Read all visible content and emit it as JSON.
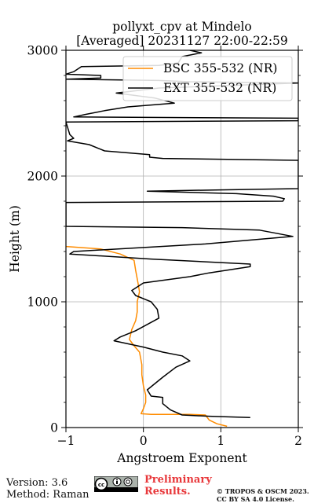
{
  "chart_data": {
    "type": "line",
    "title": "pollyxt_cpv at Mindelo",
    "subtitle": "[Averaged] 20231127 22:00-22:59",
    "xlabel": "Angstroem Exponent",
    "ylabel": "Height (m)",
    "xlim": [
      -1,
      2
    ],
    "ylim": [
      0,
      3000
    ],
    "xticks": [
      "−1",
      "0",
      "1",
      "2"
    ],
    "yticks": [
      "0",
      "1000",
      "2000",
      "3000"
    ],
    "grid": true,
    "legend_position": "top-right",
    "series": [
      {
        "name": "BSC 355-532 (NR)",
        "color": "#ff8c00",
        "points": [
          [
            1.08,
            10
          ],
          [
            0.95,
            30
          ],
          [
            0.85,
            60
          ],
          [
            0.8,
            100
          ],
          [
            0.6,
            105
          ],
          [
            0.1,
            105
          ],
          [
            -0.03,
            110
          ],
          [
            0.0,
            150
          ],
          [
            0.03,
            200
          ],
          [
            0.03,
            260
          ],
          [
            0.0,
            330
          ],
          [
            -0.02,
            420
          ],
          [
            -0.02,
            500
          ],
          [
            -0.05,
            600
          ],
          [
            -0.12,
            650
          ],
          [
            -0.18,
            700
          ],
          [
            -0.15,
            780
          ],
          [
            -0.1,
            850
          ],
          [
            -0.08,
            920
          ],
          [
            -0.08,
            1000
          ],
          [
            -0.05,
            1080
          ],
          [
            -0.07,
            1150
          ],
          [
            -0.1,
            1250
          ],
          [
            -0.12,
            1330
          ],
          [
            -0.3,
            1380
          ],
          [
            -0.55,
            1420
          ],
          [
            -1.0,
            1440
          ]
        ]
      },
      {
        "name": "EXT 355-532 (NR)",
        "color": "#000000",
        "points": [
          [
            1.38,
            80
          ],
          [
            0.85,
            90
          ],
          [
            0.5,
            100
          ],
          [
            0.35,
            140
          ],
          [
            0.25,
            190
          ],
          [
            0.25,
            240
          ],
          [
            0.1,
            250
          ],
          [
            0.05,
            300
          ],
          [
            0.25,
            400
          ],
          [
            0.42,
            480
          ],
          [
            0.6,
            530
          ],
          [
            0.5,
            570
          ],
          [
            0.25,
            600
          ],
          [
            0.0,
            640
          ],
          [
            -0.38,
            690
          ],
          [
            -0.3,
            720
          ],
          [
            -0.1,
            770
          ],
          [
            0.05,
            820
          ],
          [
            0.2,
            870
          ],
          [
            0.18,
            940
          ],
          [
            0.1,
            1000
          ],
          [
            -0.1,
            1050
          ],
          [
            -0.15,
            1090
          ],
          [
            0.0,
            1150
          ],
          [
            0.6,
            1200
          ],
          [
            0.85,
            1230
          ],
          [
            1.38,
            1280
          ],
          [
            1.38,
            1300
          ],
          [
            0.1,
            1340
          ],
          [
            -0.95,
            1380
          ],
          [
            -0.9,
            1400
          ],
          [
            0.8,
            1460
          ],
          [
            1.93,
            1520
          ],
          [
            1.5,
            1570
          ],
          [
            0.5,
            1590
          ],
          [
            -1.0,
            1600
          ],
          [
            -1.0,
            1790
          ],
          [
            1.8,
            1800
          ],
          [
            1.82,
            1820
          ],
          [
            1.68,
            1840
          ],
          [
            1.2,
            1860
          ],
          [
            0.05,
            1880
          ],
          [
            1.0,
            1890
          ],
          [
            2.0,
            1900
          ],
          [
            2.0,
            2125
          ],
          [
            0.25,
            2140
          ],
          [
            0.08,
            2150
          ],
          [
            0.08,
            2170
          ],
          [
            -0.5,
            2200
          ],
          [
            -0.58,
            2220
          ],
          [
            -0.7,
            2250
          ],
          [
            -0.98,
            2280
          ],
          [
            -0.9,
            2300
          ],
          [
            -0.95,
            2330
          ],
          [
            -1.0,
            2430
          ],
          [
            2.0,
            2440
          ],
          [
            2.0,
            2460
          ],
          [
            -0.9,
            2470
          ],
          [
            -0.75,
            2490
          ],
          [
            -0.5,
            2520
          ],
          [
            -0.2,
            2550
          ],
          [
            0.4,
            2580
          ],
          [
            0.15,
            2620
          ],
          [
            -0.35,
            2660
          ],
          [
            0.2,
            2700
          ],
          [
            2.0,
            2740
          ],
          [
            0.6,
            2750
          ],
          [
            0.2,
            2760
          ],
          [
            -1.0,
            2770
          ],
          [
            -0.55,
            2780
          ],
          [
            -0.55,
            2800
          ],
          [
            -1.0,
            2810
          ],
          [
            -0.9,
            2830
          ],
          [
            -0.8,
            2870
          ],
          [
            0.2,
            2880
          ],
          [
            0.45,
            2900
          ],
          [
            0.5,
            2950
          ],
          [
            0.75,
            2980
          ],
          [
            0.6,
            3000
          ]
        ]
      }
    ]
  },
  "footer": {
    "version": "Version: 3.6",
    "method": "Method: Raman",
    "preliminary_line1": "Preliminary",
    "preliminary_line2": "Results.",
    "preliminary_color": "#e8383b",
    "copyright_line1": "© TROPOS & OSCM 2023.",
    "copyright_line2": "CC BY SA 4.0 License.",
    "badge_icon": "cc-by-sa-icon"
  }
}
